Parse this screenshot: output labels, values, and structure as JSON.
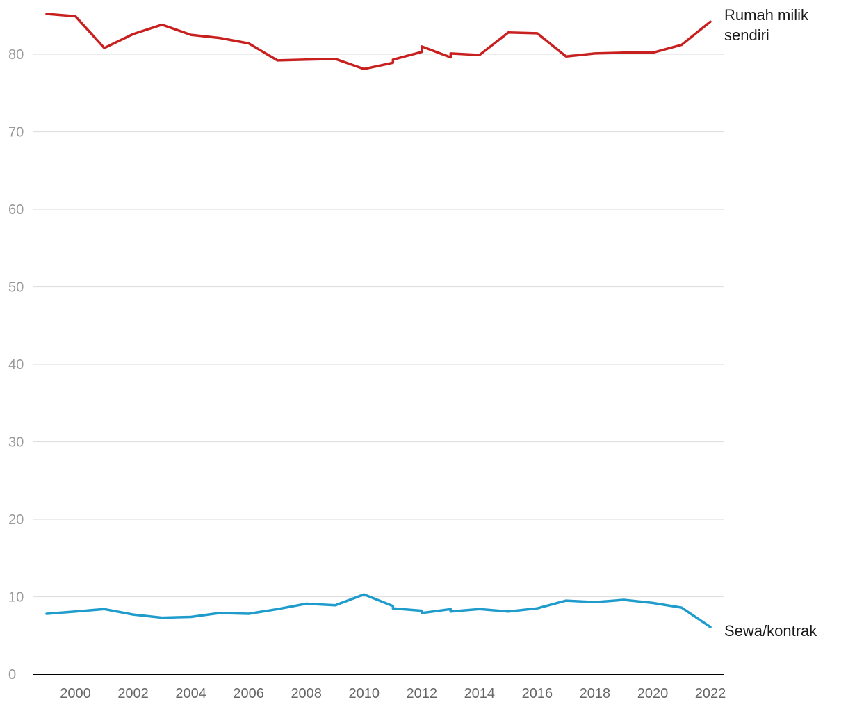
{
  "chart_data": {
    "type": "line",
    "title": "",
    "xlabel": "",
    "ylabel": "",
    "xlim": [
      1998.9,
      2022.1
    ],
    "ylim": [
      0,
      85
    ],
    "yticks": [
      0,
      10,
      20,
      30,
      40,
      50,
      60,
      70,
      80
    ],
    "xticks": [
      2000,
      2002,
      2004,
      2006,
      2008,
      2010,
      2012,
      2014,
      2016,
      2018,
      2020,
      2022
    ],
    "grid": true,
    "legend": "direct labels at right end of lines",
    "series": [
      {
        "name": "Rumah milik sendiri",
        "label_lines": [
          "Rumah milik",
          "sendiri"
        ],
        "color": "#c8201e",
        "points": [
          [
            1999,
            85.2
          ],
          [
            2000,
            84.9
          ],
          [
            2001,
            80.8
          ],
          [
            2002,
            82.6
          ],
          [
            2003,
            83.8
          ],
          [
            2004,
            82.5
          ],
          [
            2005,
            82.1
          ],
          [
            2006,
            81.4
          ],
          [
            2007,
            79.2
          ],
          [
            2008,
            79.3
          ],
          [
            2009,
            79.4
          ],
          [
            2010,
            78.1
          ],
          [
            2011,
            78.9
          ],
          [
            2011,
            79.3
          ],
          [
            2012,
            80.3
          ],
          [
            2012,
            81.0
          ],
          [
            2013,
            79.6
          ],
          [
            2013,
            80.1
          ],
          [
            2014,
            79.9
          ],
          [
            2015,
            82.8
          ],
          [
            2016,
            82.7
          ],
          [
            2017,
            79.7
          ],
          [
            2018,
            80.1
          ],
          [
            2019,
            80.2
          ],
          [
            2020,
            80.2
          ],
          [
            2021,
            81.2
          ],
          [
            2022,
            84.2
          ]
        ]
      },
      {
        "name": "Sewa/kontrak",
        "label_lines": [
          "Sewa/kontrak"
        ],
        "color": "#1f9ccc",
        "points": [
          [
            1999,
            7.8
          ],
          [
            2000,
            8.1
          ],
          [
            2001,
            8.4
          ],
          [
            2002,
            7.7
          ],
          [
            2003,
            7.3
          ],
          [
            2004,
            7.4
          ],
          [
            2005,
            7.9
          ],
          [
            2006,
            7.8
          ],
          [
            2007,
            8.4
          ],
          [
            2008,
            9.1
          ],
          [
            2009,
            8.9
          ],
          [
            2010,
            10.3
          ],
          [
            2011,
            8.8
          ],
          [
            2011,
            8.5
          ],
          [
            2012,
            8.2
          ],
          [
            2012,
            7.9
          ],
          [
            2013,
            8.4
          ],
          [
            2013,
            8.1
          ],
          [
            2014,
            8.4
          ],
          [
            2015,
            8.1
          ],
          [
            2016,
            8.5
          ],
          [
            2017,
            9.5
          ],
          [
            2018,
            9.3
          ],
          [
            2019,
            9.6
          ],
          [
            2020,
            9.2
          ],
          [
            2021,
            8.6
          ],
          [
            2022,
            6.1
          ]
        ]
      }
    ]
  }
}
